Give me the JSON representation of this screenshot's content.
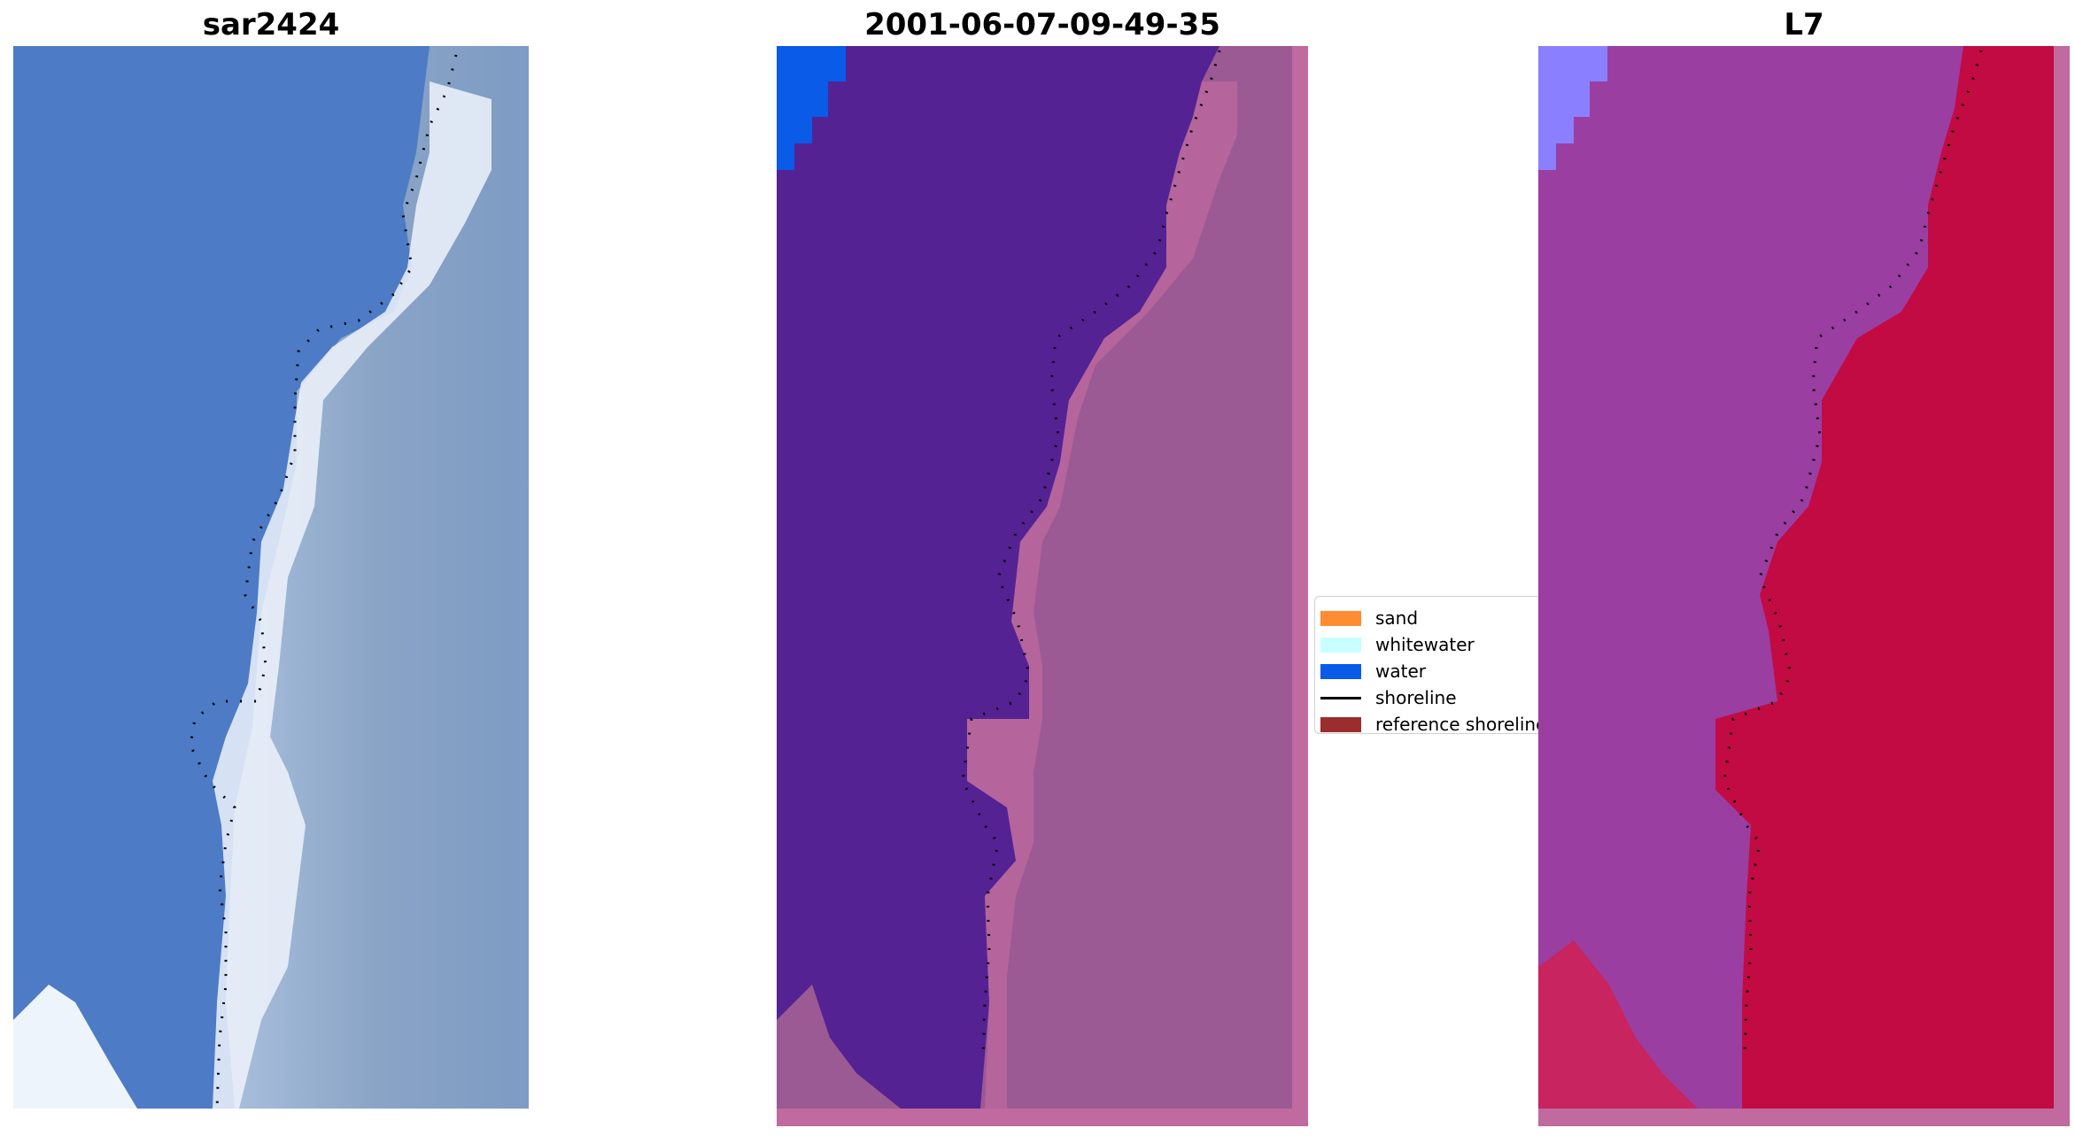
{
  "panels": [
    {
      "title": "sar2424"
    },
    {
      "title": "2001-06-07-09-49-35"
    },
    {
      "title": "L7"
    }
  ],
  "legend": {
    "items": [
      {
        "label": "sand",
        "color": "#ff8c33",
        "kind": "swatch"
      },
      {
        "label": "whitewater",
        "color": "#c8ffff",
        "kind": "swatch"
      },
      {
        "label": "water",
        "color": "#0a5be8",
        "kind": "swatch"
      },
      {
        "label": "shoreline",
        "color": "#000000",
        "kind": "line"
      },
      {
        "label": "reference shoreline",
        "color": "#9b2d2f",
        "kind": "swatch"
      }
    ]
  },
  "colors": {
    "ocean_rgb": "#4a78c4",
    "surf_rgb": "#f0f4fb",
    "land_rgb": "#8da6c8",
    "class_background": "#552294",
    "class_land": "#9b5a93",
    "class_land_light": "#c06a9f",
    "class_water_patch": "#0a5be8",
    "ndwi_water": "#9a40a3",
    "ndwi_land": "#c20b43",
    "ndwi_light": "#8a80ff"
  }
}
